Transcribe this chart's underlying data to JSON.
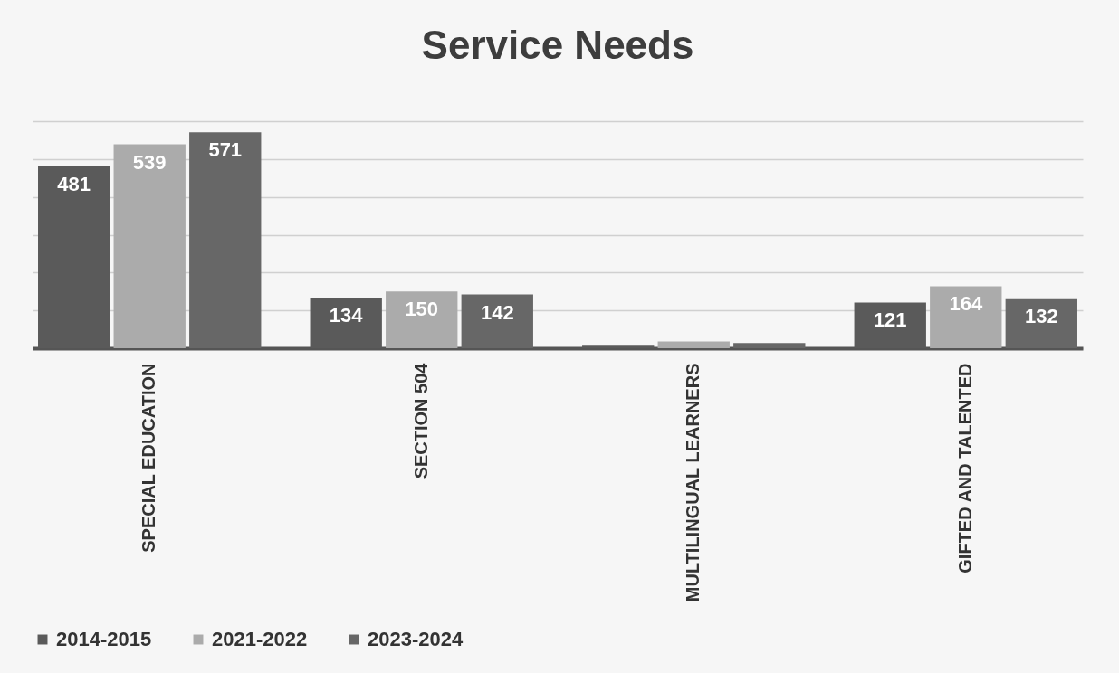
{
  "chart_data": {
    "type": "bar",
    "title": "Service Needs",
    "categories": [
      "SPECIAL EDUCATION",
      "SECTION 504",
      "MULTILINGUAL LEARNERS",
      "GIFTED AND TALENTED"
    ],
    "series": [
      {
        "name": "2014-2015",
        "color": "#5a5a5a",
        "values": [
          481,
          134,
          9,
          121
        ],
        "value_labels": [
          "481",
          "134",
          null,
          "121"
        ]
      },
      {
        "name": "2021-2022",
        "color": "#ababab",
        "values": [
          539,
          150,
          18,
          164
        ],
        "value_labels": [
          "539",
          "150",
          null,
          "164"
        ]
      },
      {
        "name": "2023-2024",
        "color": "#676767",
        "values": [
          571,
          142,
          14,
          132
        ],
        "value_labels": [
          "571",
          "142",
          null,
          "132"
        ]
      }
    ],
    "ylim": [
      0,
      600
    ],
    "yticks": [
      0,
      100,
      200,
      300,
      400,
      500,
      600
    ],
    "tick_labels": "x",
    "grid": "y",
    "legend": "bottom"
  }
}
